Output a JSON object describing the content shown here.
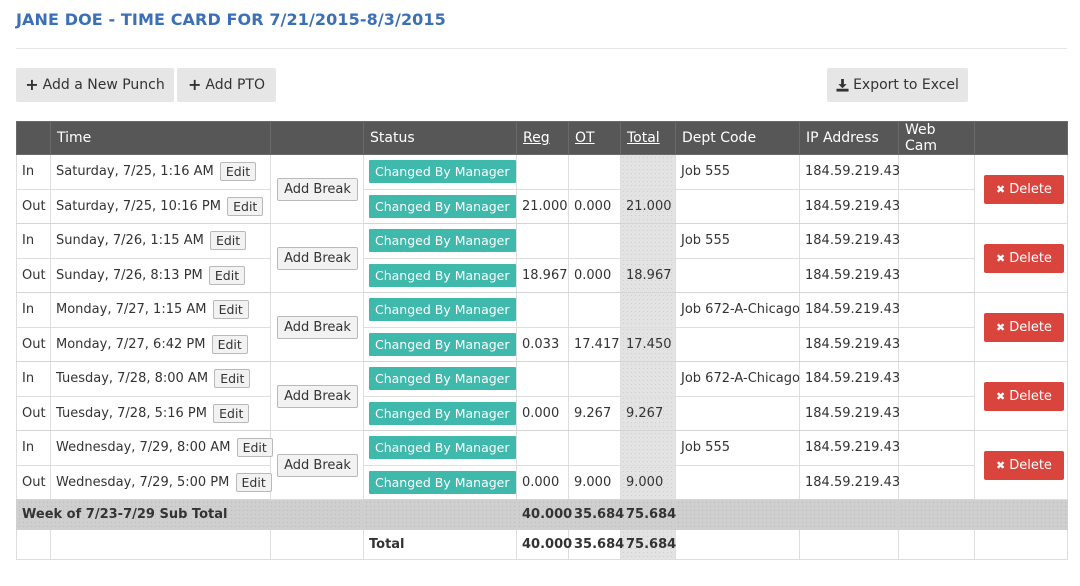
{
  "header": {
    "title": "JANE DOE - TIME CARD FOR 7/21/2015-8/3/2015"
  },
  "toolbar": {
    "add_punch_label": "Add a New Punch",
    "add_pto_label": "Add PTO",
    "export_label": "Export to Excel"
  },
  "table": {
    "headers": {
      "time": "Time",
      "status": "Status",
      "reg": "Reg",
      "ot": "OT",
      "total": "Total",
      "dept": "Dept Code",
      "ip": "IP Address",
      "webcam": "Web Cam"
    },
    "edit_label": "Edit",
    "add_break_label": "Add Break",
    "delete_label": "Delete",
    "days": [
      {
        "in": {
          "type": "In",
          "time": "Saturday, 7/25, 1:16 AM",
          "status": "Changed By Manager",
          "reg": "",
          "ot": "",
          "total": "",
          "dept": "Job 555",
          "ip": "184.59.219.43"
        },
        "out": {
          "type": "Out",
          "time": "Saturday, 7/25, 10:16 PM",
          "status": "Changed By Manager",
          "reg": "21.000",
          "ot": "0.000",
          "total": "21.000",
          "dept": "",
          "ip": "184.59.219.43"
        }
      },
      {
        "in": {
          "type": "In",
          "time": "Sunday, 7/26, 1:15 AM",
          "status": "Changed By Manager",
          "reg": "",
          "ot": "",
          "total": "",
          "dept": "Job 555",
          "ip": "184.59.219.43"
        },
        "out": {
          "type": "Out",
          "time": "Sunday, 7/26, 8:13 PM",
          "status": "Changed By Manager",
          "reg": "18.967",
          "ot": "0.000",
          "total": "18.967",
          "dept": "",
          "ip": "184.59.219.43"
        }
      },
      {
        "in": {
          "type": "In",
          "time": "Monday, 7/27, 1:15 AM",
          "status": "Changed By Manager",
          "reg": "",
          "ot": "",
          "total": "",
          "dept": "Job 672-A-Chicago",
          "ip": "184.59.219.43"
        },
        "out": {
          "type": "Out",
          "time": "Monday, 7/27, 6:42 PM",
          "status": "Changed By Manager",
          "reg": "0.033",
          "ot": "17.417",
          "total": "17.450",
          "dept": "",
          "ip": "184.59.219.43"
        }
      },
      {
        "in": {
          "type": "In",
          "time": "Tuesday, 7/28, 8:00 AM",
          "status": "Changed By Manager",
          "reg": "",
          "ot": "",
          "total": "",
          "dept": "Job 672-A-Chicago",
          "ip": "184.59.219.43"
        },
        "out": {
          "type": "Out",
          "time": "Tuesday, 7/28, 5:16 PM",
          "status": "Changed By Manager",
          "reg": "0.000",
          "ot": "9.267",
          "total": "9.267",
          "dept": "",
          "ip": "184.59.219.43"
        }
      },
      {
        "in": {
          "type": "In",
          "time": "Wednesday, 7/29, 8:00 AM",
          "status": "Changed By Manager",
          "reg": "",
          "ot": "",
          "total": "",
          "dept": "Job 555",
          "ip": "184.59.219.43"
        },
        "out": {
          "type": "Out",
          "time": "Wednesday, 7/29, 5:00 PM",
          "status": "Changed By Manager",
          "reg": "0.000",
          "ot": "9.000",
          "total": "9.000",
          "dept": "",
          "ip": "184.59.219.43"
        }
      }
    ],
    "subtotal": {
      "label": "Week of 7/23-7/29 Sub Total",
      "reg": "40.000",
      "ot": "35.684",
      "total": "75.684"
    },
    "grand_total": {
      "label": "Total",
      "reg": "40.000",
      "ot": "35.684",
      "total": "75.684"
    }
  },
  "colors": {
    "title": "#3b6fb6",
    "header_bg": "#575757",
    "status_badge": "#3fb9ac",
    "delete": "#d9453d"
  }
}
